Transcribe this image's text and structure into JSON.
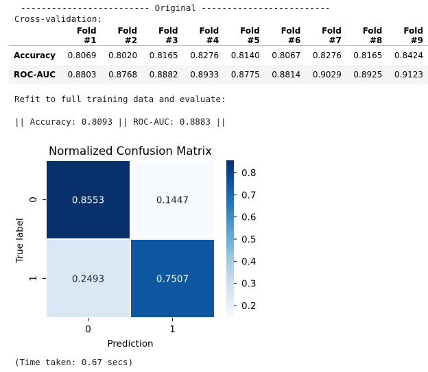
{
  "output": {
    "original_header": "------------------------- Original -------------------------",
    "cv_label": "Cross-validation:",
    "refit_label": "Refit to full training data and evaluate:",
    "metrics_line": "|| Accuracy: 0.8093 || ROC-AUC: 0.8883 ||",
    "time_taken": "(Time taken: 0.67 secs)"
  },
  "cv_table": {
    "columns": [
      "Fold #1",
      "Fold #2",
      "Fold #3",
      "Fold #4",
      "Fold #5",
      "Fold #6",
      "Fold #7",
      "Fold #8",
      "Fold #9"
    ],
    "rows": [
      {
        "label": "Accuracy",
        "values": [
          "0.8069",
          "0.8020",
          "0.8165",
          "0.8276",
          "0.8140",
          "0.8067",
          "0.8276",
          "0.8165",
          "0.8424"
        ]
      },
      {
        "label": "ROC-AUC",
        "values": [
          "0.8803",
          "0.8768",
          "0.8882",
          "0.8933",
          "0.8775",
          "0.8814",
          "0.9029",
          "0.8925",
          "0.9123"
        ]
      }
    ]
  },
  "chart_data": {
    "type": "heatmap",
    "title": "Normalized Confusion Matrix",
    "xlabel": "Prediction",
    "ylabel": "True label",
    "x_categories": [
      "0",
      "1"
    ],
    "y_categories": [
      "0",
      "1"
    ],
    "values": [
      [
        0.8553,
        0.1447
      ],
      [
        0.2493,
        0.7507
      ]
    ],
    "value_labels": [
      [
        "0.8553",
        "0.1447"
      ],
      [
        "0.2493",
        "0.7507"
      ]
    ],
    "colorbar": {
      "range": [
        0.1447,
        0.8553
      ],
      "ticks": [
        "0.2",
        "0.3",
        "0.4",
        "0.5",
        "0.6",
        "0.7",
        "0.8"
      ],
      "tick_values": [
        0.2,
        0.3,
        0.4,
        0.5,
        0.6,
        0.7,
        0.8
      ]
    },
    "colormap": "Blues",
    "colormap_colors": [
      "#f7fbff",
      "#deebf7",
      "#c6dbef",
      "#9ecae1",
      "#6baed6",
      "#4292c6",
      "#2171b5",
      "#08519c",
      "#08306b"
    ]
  }
}
